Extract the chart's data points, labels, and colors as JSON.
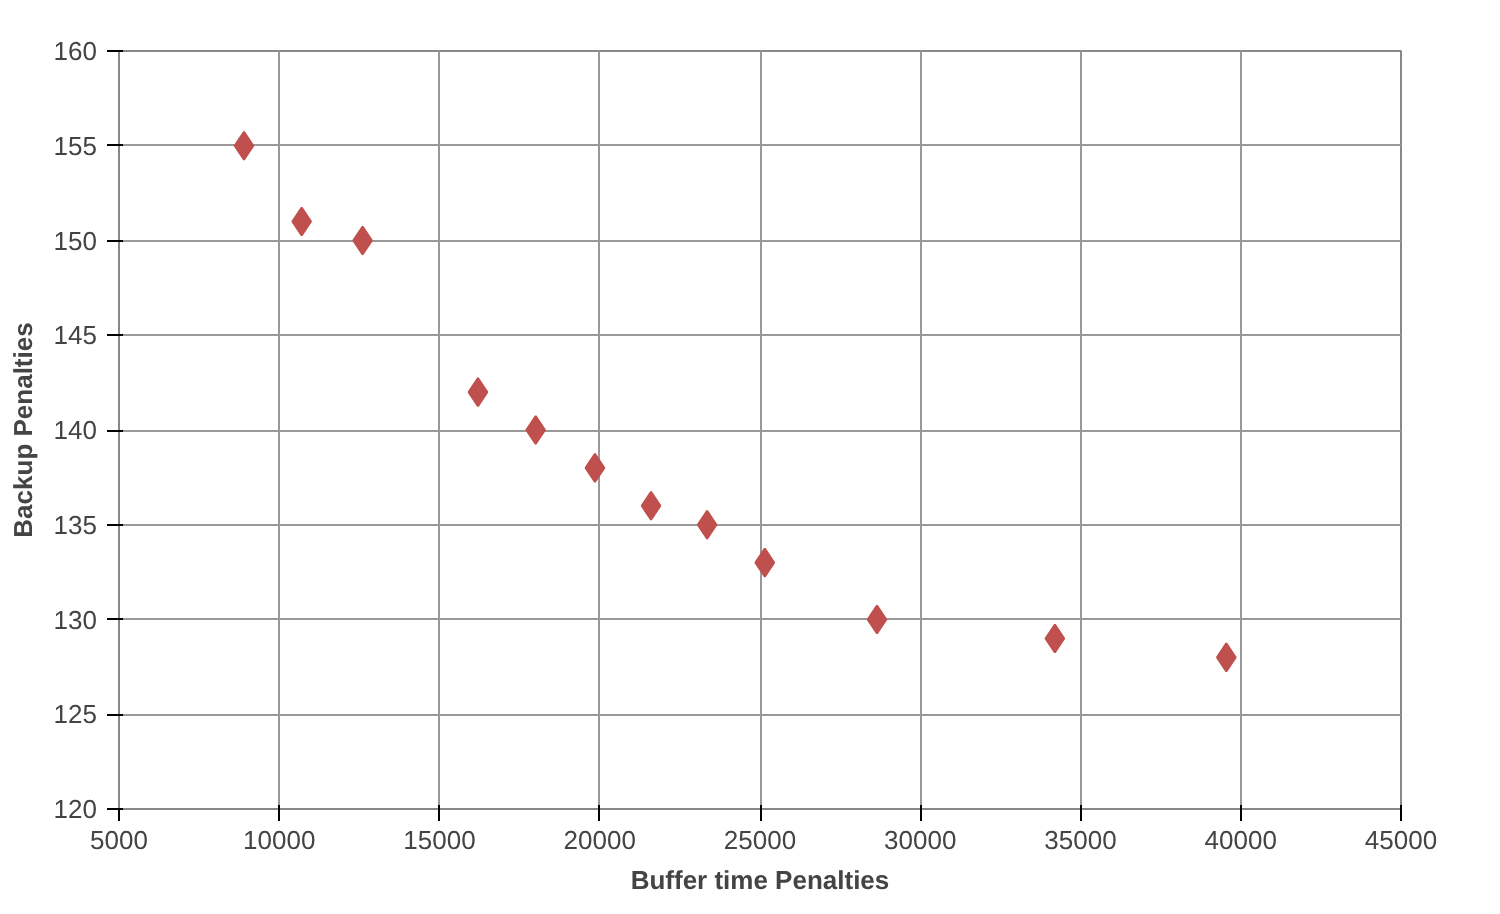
{
  "chart_data": {
    "type": "scatter",
    "xlabel": "Buffer time Penalties",
    "ylabel": "Backup Penalties",
    "x": [
      8900,
      10700,
      12600,
      16200,
      18000,
      19850,
      21600,
      23350,
      25150,
      28650,
      34200,
      39550
    ],
    "values": [
      155,
      151,
      150,
      142,
      140,
      138,
      136,
      135,
      133,
      130,
      129,
      128
    ],
    "color": "#c0504d",
    "marker": "diamond",
    "grid": true,
    "xlim": [
      5000,
      45000
    ],
    "xticks": [
      5000,
      10000,
      15000,
      20000,
      25000,
      30000,
      35000,
      40000,
      45000
    ],
    "ylim": [
      120,
      160
    ],
    "yticks": [
      120,
      125,
      130,
      135,
      140,
      145,
      150,
      155,
      160
    ]
  }
}
